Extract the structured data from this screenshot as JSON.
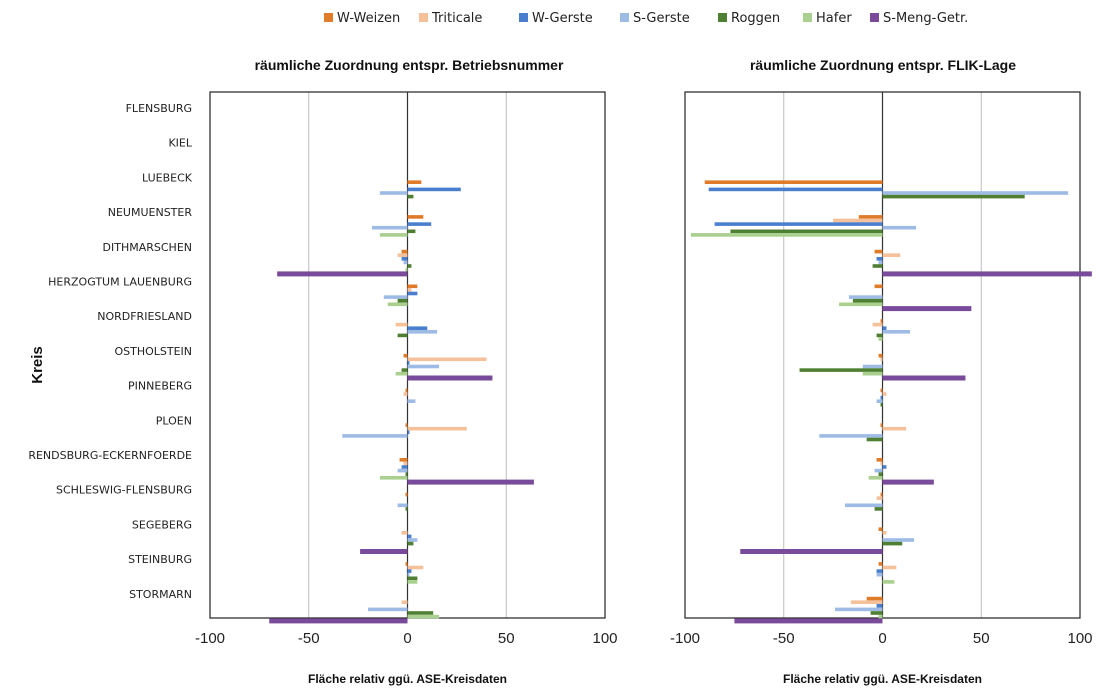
{
  "colors": {
    "W-Weizen": "#e07b2a",
    "Triticale": "#f4c19a",
    "W-Gerste": "#4a7fcf",
    "S-Gerste": "#9dbbe4",
    "Roggen": "#4f7f32",
    "Hafer": "#a9d08e",
    "S-Meng-Getr.": "#7a4b9a"
  },
  "chart_data": [
    {
      "type": "bar",
      "orientation": "horizontal",
      "title": "räumliche Zuordnung entspr. Betriebsnummer",
      "xlabel": "Fläche relativ ggü. ASE-Kreisdaten",
      "ylabel": "Kreis",
      "xlim": [
        -100,
        100
      ],
      "xticks": [
        "-100",
        "-50",
        "0",
        "50",
        "100"
      ],
      "grid": "vertical",
      "legend": "top",
      "categories": [
        "FLENSBURG",
        "KIEL",
        "LUEBECK",
        "NEUMUENSTER",
        "DITHMARSCHEN",
        "HERZOGTUM LAUENBURG",
        "NORDFRIESLAND",
        "OSTHOLSTEIN",
        "PINNEBERG",
        "PLOEN",
        "RENDSBURG-ECKERNFOERDE",
        "SCHLESWIG-FLENSBURG",
        "SEGEBERG",
        "STEINBURG",
        "STORMARN"
      ],
      "series": [
        {
          "name": "W-Weizen",
          "values": [
            0,
            0,
            7,
            8,
            -3,
            5,
            0,
            -2,
            -1,
            -1,
            -4,
            -1,
            0,
            -1,
            0
          ]
        },
        {
          "name": "Triticale",
          "values": [
            0,
            0,
            0,
            0,
            -5,
            2,
            -6,
            40,
            -2,
            30,
            -2,
            0,
            -3,
            8,
            -3
          ]
        },
        {
          "name": "W-Gerste",
          "values": [
            0,
            0,
            27,
            12,
            -3,
            5,
            10,
            1,
            0,
            1,
            -3,
            0,
            2,
            2,
            0
          ]
        },
        {
          "name": "S-Gerste",
          "values": [
            0,
            0,
            -14,
            -18,
            -2,
            -12,
            15,
            16,
            4,
            -33,
            -5,
            -5,
            5,
            1,
            -20
          ]
        },
        {
          "name": "Roggen",
          "values": [
            0,
            0,
            3,
            4,
            2,
            -5,
            -5,
            -3,
            0,
            0,
            -1,
            -1,
            3,
            5,
            13
          ]
        },
        {
          "name": "Hafer",
          "values": [
            0,
            0,
            0,
            -14,
            -1,
            -10,
            0,
            -6,
            0,
            0,
            -14,
            0,
            0,
            5,
            16
          ]
        },
        {
          "name": "S-Meng-Getr.",
          "values": [
            0,
            0,
            0,
            0,
            -66,
            0,
            0,
            43,
            0,
            0,
            64,
            0,
            -24,
            0,
            -70
          ]
        }
      ]
    },
    {
      "type": "bar",
      "orientation": "horizontal",
      "title": "räumliche Zuordnung entspr. FLIK-Lage",
      "xlabel": "Fläche relativ ggü. ASE-Kreisdaten",
      "ylabel": "",
      "xlim": [
        -100,
        100
      ],
      "xticks": [
        "-100",
        "-50",
        "0",
        "50",
        "100"
      ],
      "grid": "vertical",
      "legend": "top",
      "categories": [
        "FLENSBURG",
        "KIEL",
        "LUEBECK",
        "NEUMUENSTER",
        "DITHMARSCHEN",
        "HERZOGTUM LAUENBURG",
        "NORDFRIESLAND",
        "OSTHOLSTEIN",
        "PINNEBERG",
        "PLOEN",
        "RENDSBURG-ECKERNFOERDE",
        "SCHLESWIG-FLENSBURG",
        "SEGEBERG",
        "STEINBURG",
        "STORMARN"
      ],
      "series": [
        {
          "name": "W-Weizen",
          "values": [
            0,
            0,
            -90,
            -12,
            -4,
            -4,
            -1,
            -2,
            -1,
            -1,
            -3,
            -1,
            -2,
            -2,
            -8
          ]
        },
        {
          "name": "Triticale",
          "values": [
            0,
            0,
            0,
            -25,
            9,
            0,
            -5,
            -1,
            2,
            12,
            -1,
            -3,
            2,
            7,
            -16
          ]
        },
        {
          "name": "W-Gerste",
          "values": [
            0,
            0,
            -88,
            -85,
            -3,
            0,
            2,
            0,
            -1,
            0,
            2,
            0,
            0,
            -3,
            -3
          ]
        },
        {
          "name": "S-Gerste",
          "values": [
            0,
            0,
            94,
            17,
            -2,
            -17,
            14,
            -10,
            -3,
            -32,
            -4,
            -19,
            16,
            -3,
            -24
          ]
        },
        {
          "name": "Roggen",
          "values": [
            0,
            0,
            72,
            -77,
            -5,
            -15,
            -3,
            -42,
            -1,
            -8,
            -2,
            -4,
            10,
            0,
            -6
          ]
        },
        {
          "name": "Hafer",
          "values": [
            0,
            0,
            0,
            -97,
            0,
            -22,
            -2,
            -10,
            0,
            0,
            -7,
            0,
            0,
            6,
            -2
          ]
        },
        {
          "name": "S-Meng-Getr.",
          "values": [
            0,
            0,
            0,
            0,
            106,
            45,
            0,
            42,
            0,
            0,
            26,
            0,
            -72,
            0,
            -75
          ]
        }
      ]
    }
  ]
}
